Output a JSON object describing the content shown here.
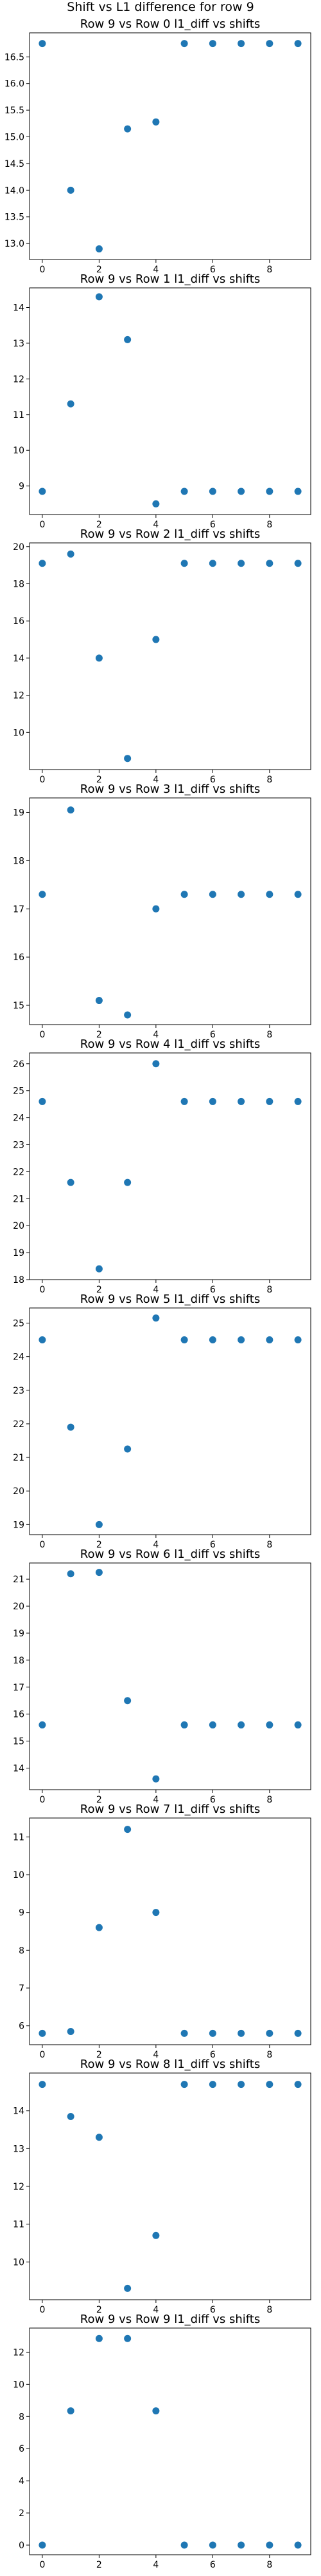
{
  "suptitle": "Shift vs L1 difference for row 9",
  "chart_data": [
    {
      "type": "scatter",
      "title": "Row 9 vs Row 0 l1_diff vs shifts",
      "x": [
        0,
        1,
        2,
        3,
        4,
        5,
        6,
        7,
        8,
        9
      ],
      "y": [
        16.75,
        14.0,
        12.9,
        15.15,
        15.28,
        16.75,
        16.75,
        16.75,
        16.75,
        16.75
      ],
      "xticks": [
        0,
        2,
        4,
        6,
        8
      ],
      "xlim": [
        -0.45,
        9.45
      ],
      "yticks": [
        13.0,
        13.5,
        14.0,
        14.5,
        15.0,
        15.5,
        16.0,
        16.5
      ],
      "ytick_labels": [
        "13.0",
        "13.5",
        "14.0",
        "14.5",
        "15.0",
        "15.5",
        "16.0",
        "16.5"
      ],
      "ylim": [
        12.7,
        16.95
      ],
      "color": "#1f77b4"
    },
    {
      "type": "scatter",
      "title": "Row 9 vs Row 1 l1_diff vs shifts",
      "x": [
        0,
        1,
        2,
        3,
        4,
        5,
        6,
        7,
        8,
        9
      ],
      "y": [
        8.85,
        11.3,
        14.3,
        13.1,
        8.5,
        8.85,
        8.85,
        8.85,
        8.85,
        8.85
      ],
      "xticks": [
        0,
        2,
        4,
        6,
        8
      ],
      "xlim": [
        -0.45,
        9.45
      ],
      "yticks": [
        9,
        10,
        11,
        12,
        13,
        14
      ],
      "ytick_labels": [
        "9",
        "10",
        "11",
        "12",
        "13",
        "14"
      ],
      "ylim": [
        8.2,
        14.55
      ],
      "color": "#1f77b4"
    },
    {
      "type": "scatter",
      "title": "Row 9 vs Row 2 l1_diff vs shifts",
      "x": [
        0,
        1,
        2,
        3,
        4,
        5,
        6,
        7,
        8,
        9
      ],
      "y": [
        19.1,
        19.6,
        14.0,
        8.6,
        15.0,
        19.1,
        19.1,
        19.1,
        19.1,
        19.1
      ],
      "xticks": [
        0,
        2,
        4,
        6,
        8
      ],
      "xlim": [
        -0.45,
        9.45
      ],
      "yticks": [
        10,
        12,
        14,
        16,
        18,
        20
      ],
      "ytick_labels": [
        "10",
        "12",
        "14",
        "16",
        "18",
        "20"
      ],
      "ylim": [
        8.0,
        20.2
      ],
      "color": "#1f77b4"
    },
    {
      "type": "scatter",
      "title": "Row 9 vs Row 3 l1_diff vs shifts",
      "x": [
        0,
        1,
        2,
        3,
        4,
        5,
        6,
        7,
        8,
        9
      ],
      "y": [
        17.3,
        19.05,
        15.1,
        14.8,
        17.0,
        17.3,
        17.3,
        17.3,
        17.3,
        17.3
      ],
      "xticks": [
        0,
        2,
        4,
        6,
        8
      ],
      "xlim": [
        -0.45,
        9.45
      ],
      "yticks": [
        15,
        16,
        17,
        18,
        19
      ],
      "ytick_labels": [
        "15",
        "16",
        "17",
        "18",
        "19"
      ],
      "ylim": [
        14.6,
        19.3
      ],
      "color": "#1f77b4"
    },
    {
      "type": "scatter",
      "title": "Row 9 vs Row 4 l1_diff vs shifts",
      "x": [
        0,
        1,
        2,
        3,
        4,
        5,
        6,
        7,
        8,
        9
      ],
      "y": [
        24.6,
        21.6,
        18.4,
        21.6,
        26.0,
        24.6,
        24.6,
        24.6,
        24.6,
        24.6
      ],
      "xticks": [
        0,
        2,
        4,
        6,
        8
      ],
      "xlim": [
        -0.45,
        9.45
      ],
      "yticks": [
        18,
        19,
        20,
        21,
        22,
        23,
        24,
        25,
        26
      ],
      "ytick_labels": [
        "18",
        "19",
        "20",
        "21",
        "22",
        "23",
        "24",
        "25",
        "26"
      ],
      "ylim": [
        18.0,
        26.4
      ],
      "color": "#1f77b4"
    },
    {
      "type": "scatter",
      "title": "Row 9 vs Row 5 l1_diff vs shifts",
      "x": [
        0,
        1,
        2,
        3,
        4,
        5,
        6,
        7,
        8,
        9
      ],
      "y": [
        24.5,
        21.9,
        19.0,
        21.25,
        25.15,
        24.5,
        24.5,
        24.5,
        24.5,
        24.5
      ],
      "xticks": [
        0,
        2,
        4,
        6,
        8
      ],
      "xlim": [
        -0.45,
        9.45
      ],
      "yticks": [
        19,
        20,
        21,
        22,
        23,
        24,
        25
      ],
      "ytick_labels": [
        "19",
        "20",
        "21",
        "22",
        "23",
        "24",
        "25"
      ],
      "ylim": [
        18.7,
        25.45
      ],
      "color": "#1f77b4"
    },
    {
      "type": "scatter",
      "title": "Row 9 vs Row 6 l1_diff vs shifts",
      "x": [
        0,
        1,
        2,
        3,
        4,
        5,
        6,
        7,
        8,
        9
      ],
      "y": [
        15.6,
        21.2,
        21.25,
        16.5,
        13.6,
        15.6,
        15.6,
        15.6,
        15.6,
        15.6
      ],
      "xticks": [
        0,
        2,
        4,
        6,
        8
      ],
      "xlim": [
        -0.45,
        9.45
      ],
      "yticks": [
        14,
        15,
        16,
        17,
        18,
        19,
        20,
        21
      ],
      "ytick_labels": [
        "14",
        "15",
        "16",
        "17",
        "18",
        "19",
        "20",
        "21"
      ],
      "ylim": [
        13.2,
        21.6
      ],
      "color": "#1f77b4"
    },
    {
      "type": "scatter",
      "title": "Row 9 vs Row 7 l1_diff vs shifts",
      "x": [
        0,
        1,
        2,
        3,
        4,
        5,
        6,
        7,
        8,
        9
      ],
      "y": [
        5.8,
        5.85,
        8.6,
        11.2,
        9.0,
        5.8,
        5.8,
        5.8,
        5.8,
        5.8
      ],
      "xticks": [
        0,
        2,
        4,
        6,
        8
      ],
      "xlim": [
        -0.45,
        9.45
      ],
      "yticks": [
        6,
        7,
        8,
        9,
        10,
        11
      ],
      "ytick_labels": [
        "6",
        "7",
        "8",
        "9",
        "10",
        "11"
      ],
      "ylim": [
        5.5,
        11.5
      ],
      "color": "#1f77b4"
    },
    {
      "type": "scatter",
      "title": "Row 9 vs Row 8 l1_diff vs shifts",
      "x": [
        0,
        1,
        2,
        3,
        4,
        5,
        6,
        7,
        8,
        9
      ],
      "y": [
        14.7,
        13.85,
        13.3,
        9.3,
        10.7,
        14.7,
        14.7,
        14.7,
        14.7,
        14.7
      ],
      "xticks": [
        0,
        2,
        4,
        6,
        8
      ],
      "xlim": [
        -0.45,
        9.45
      ],
      "yticks": [
        10,
        11,
        12,
        13,
        14
      ],
      "ytick_labels": [
        "10",
        "11",
        "12",
        "13",
        "14"
      ],
      "ylim": [
        9.0,
        15.0
      ],
      "color": "#1f77b4"
    },
    {
      "type": "scatter",
      "title": "Row 9 vs Row 9 l1_diff vs shifts",
      "x": [
        0,
        1,
        2,
        3,
        4,
        5,
        6,
        7,
        8,
        9
      ],
      "y": [
        0,
        8.35,
        12.85,
        12.85,
        8.35,
        0,
        0,
        0,
        0,
        0
      ],
      "xticks": [
        0,
        2,
        4,
        6,
        8
      ],
      "xlim": [
        -0.45,
        9.45
      ],
      "yticks": [
        0,
        2,
        4,
        6,
        8,
        10,
        12
      ],
      "ytick_labels": [
        "0",
        "2",
        "4",
        "6",
        "8",
        "10",
        "12"
      ],
      "ylim": [
        -0.6,
        13.5
      ],
      "color": "#1f77b4"
    }
  ]
}
